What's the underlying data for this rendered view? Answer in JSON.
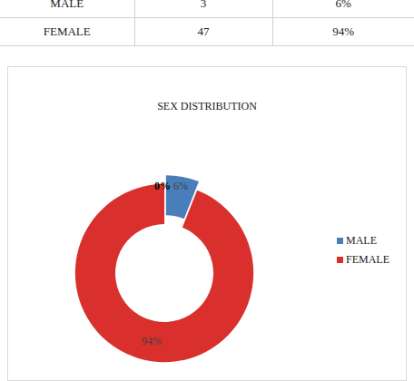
{
  "table": {
    "rows": [
      [
        "MALE",
        "3",
        "6%"
      ],
      [
        "FEMALE",
        "47",
        "94%"
      ]
    ]
  },
  "chart_data": {
    "type": "pie",
    "title": "SEX DISTRIBUTION",
    "categories": [
      "MALE",
      "FEMALE"
    ],
    "values": [
      6,
      94
    ],
    "value_labels": [
      "6%",
      "94%"
    ],
    "colors": [
      "#4a7ebb",
      "#d9302e"
    ],
    "data_labels": true,
    "legend": "right",
    "annotations": [
      "0%"
    ]
  }
}
